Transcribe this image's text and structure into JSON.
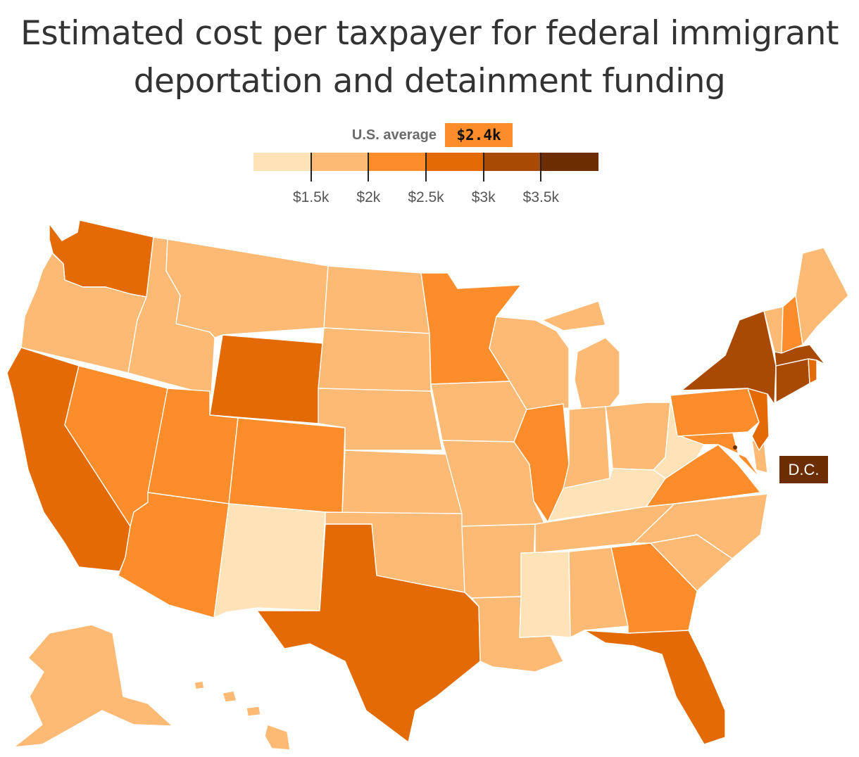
{
  "title": "Estimated cost per taxpayer for federal immigrant deportation and detainment funding",
  "legend": {
    "average_label": "U.S. average",
    "average_value": "$2.4k",
    "average_color": "#fd8d2b",
    "bins": [
      {
        "color": "#fee3b8",
        "range": "< $1.5k"
      },
      {
        "color": "#fdba74",
        "range": "$1.5k–$2k"
      },
      {
        "color": "#fd8d2b",
        "range": "$2k–$2.5k"
      },
      {
        "color": "#e36a04",
        "range": "$2.5k–$3k"
      },
      {
        "color": "#a84a03",
        "range": "$3k–$3.5k"
      },
      {
        "color": "#6b2d01",
        "range": "> $3.5k"
      }
    ],
    "ticks": [
      "$1.5k",
      "$2k",
      "$2.5k",
      "$3k",
      "$3.5k"
    ]
  },
  "dc_label": "D.C.",
  "dc_bin": 5,
  "states": [
    {
      "name": "Washington",
      "bin": 3
    },
    {
      "name": "Oregon",
      "bin": 1
    },
    {
      "name": "California",
      "bin": 3
    },
    {
      "name": "Idaho",
      "bin": 1
    },
    {
      "name": "Nevada",
      "bin": 2
    },
    {
      "name": "Montana",
      "bin": 1
    },
    {
      "name": "Wyoming",
      "bin": 3
    },
    {
      "name": "Utah",
      "bin": 2
    },
    {
      "name": "Arizona",
      "bin": 2
    },
    {
      "name": "Colorado",
      "bin": 2
    },
    {
      "name": "New Mexico",
      "bin": 0
    },
    {
      "name": "North Dakota",
      "bin": 1
    },
    {
      "name": "South Dakota",
      "bin": 1
    },
    {
      "name": "Nebraska",
      "bin": 1
    },
    {
      "name": "Kansas",
      "bin": 1
    },
    {
      "name": "Oklahoma",
      "bin": 1
    },
    {
      "name": "Texas",
      "bin": 3
    },
    {
      "name": "Minnesota",
      "bin": 2
    },
    {
      "name": "Iowa",
      "bin": 1
    },
    {
      "name": "Missouri",
      "bin": 1
    },
    {
      "name": "Arkansas",
      "bin": 1
    },
    {
      "name": "Louisiana",
      "bin": 1
    },
    {
      "name": "Wisconsin",
      "bin": 1
    },
    {
      "name": "Illinois",
      "bin": 2
    },
    {
      "name": "Michigan",
      "bin": 1
    },
    {
      "name": "Indiana",
      "bin": 1
    },
    {
      "name": "Ohio",
      "bin": 1
    },
    {
      "name": "Kentucky",
      "bin": 0
    },
    {
      "name": "Tennessee",
      "bin": 1
    },
    {
      "name": "Mississippi",
      "bin": 0
    },
    {
      "name": "Alabama",
      "bin": 1
    },
    {
      "name": "Georgia",
      "bin": 2
    },
    {
      "name": "Florida",
      "bin": 3
    },
    {
      "name": "South Carolina",
      "bin": 1
    },
    {
      "name": "North Carolina",
      "bin": 1
    },
    {
      "name": "Virginia",
      "bin": 2
    },
    {
      "name": "West Virginia",
      "bin": 0
    },
    {
      "name": "Maryland",
      "bin": 2
    },
    {
      "name": "Delaware",
      "bin": 1
    },
    {
      "name": "Pennsylvania",
      "bin": 2
    },
    {
      "name": "New Jersey",
      "bin": 3
    },
    {
      "name": "New York",
      "bin": 4
    },
    {
      "name": "Connecticut",
      "bin": 4
    },
    {
      "name": "Rhode Island",
      "bin": 3
    },
    {
      "name": "Massachusetts",
      "bin": 4
    },
    {
      "name": "Vermont",
      "bin": 1
    },
    {
      "name": "New Hampshire",
      "bin": 2
    },
    {
      "name": "Maine",
      "bin": 1
    },
    {
      "name": "Alaska",
      "bin": 1
    },
    {
      "name": "Hawaii",
      "bin": 1
    }
  ]
}
